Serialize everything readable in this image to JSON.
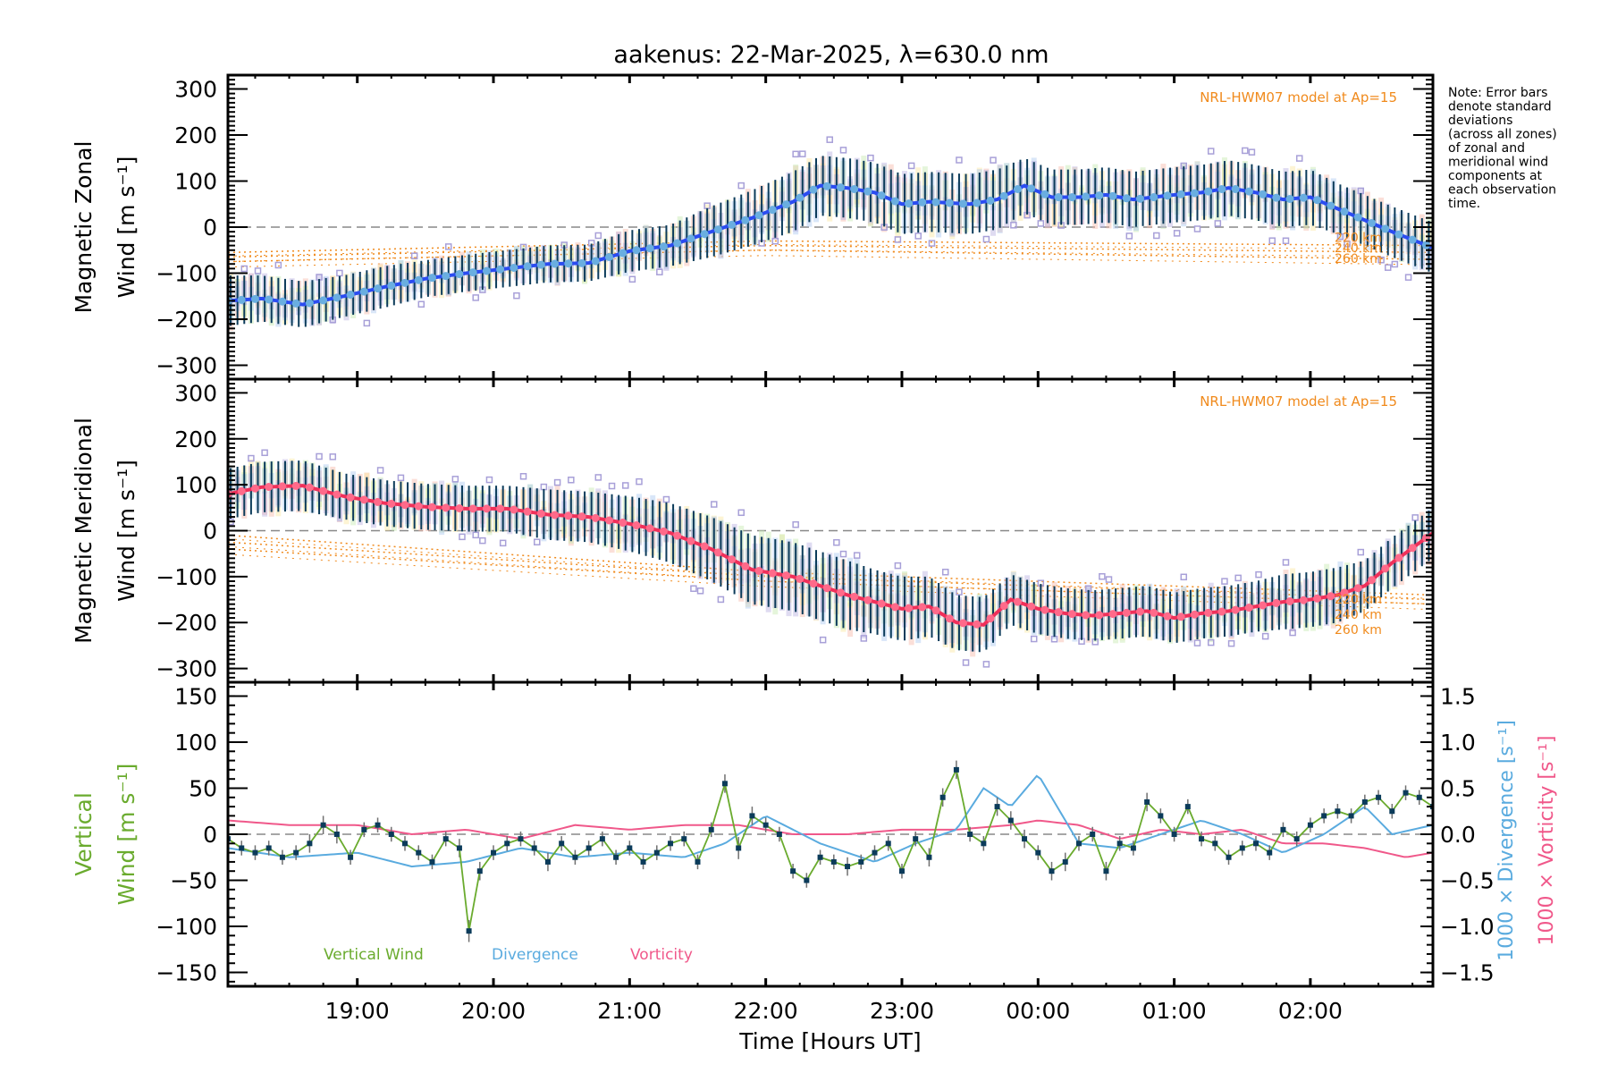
{
  "title": "aakenus: 22-Mar-2025, λ=630.0 nm",
  "note_lines": [
    "Note: Error bars",
    "denote standard",
    "deviations",
    "(across all zones)",
    "of zonal and",
    "meridional wind",
    "components at",
    "each observation",
    "time."
  ],
  "chart_data": [
    {
      "type": "line",
      "panel": "zonal",
      "ylabel_line1": "Magnetic Zonal",
      "ylabel_line2": "Wind [m s⁻¹]",
      "ylim": [
        -330,
        330
      ],
      "yticks": [
        300,
        200,
        100,
        0,
        -100,
        -200,
        -300
      ],
      "xlim": [
        18.05,
        26.9
      ],
      "xticks": [
        19,
        20,
        21,
        22,
        23,
        24,
        25,
        26
      ],
      "xtick_labels": [
        "19:00",
        "20:00",
        "21:00",
        "22:00",
        "23:00",
        "00:00",
        "01:00",
        "02:00"
      ],
      "model_label": "NRL-HWM07 model at Ap=15",
      "model_altitude_labels": [
        "220 km",
        "240 km",
        "260 km"
      ],
      "reference_line": 0,
      "colors": {
        "mean": "#2b4cf0",
        "mean_marker": "#6aaee0",
        "errorbar": "#0b3b5a",
        "model": "#f08a1c",
        "zone_scatter": [
          "#f7b8a8",
          "#fbe7a0",
          "#c6e8b0",
          "#aac8f0",
          "#b8b0e0"
        ]
      },
      "series": [
        {
          "name": "Mean zonal wind",
          "x": [
            18.05,
            18.3,
            18.6,
            18.9,
            19.2,
            19.5,
            19.8,
            20.1,
            20.4,
            20.7,
            21.0,
            21.3,
            21.6,
            21.9,
            22.2,
            22.4,
            22.6,
            22.8,
            23.0,
            23.2,
            23.5,
            23.7,
            23.9,
            24.1,
            24.3,
            24.5,
            24.7,
            25.0,
            25.2,
            25.4,
            25.6,
            25.8,
            26.0,
            26.2,
            26.4,
            26.6,
            26.9
          ],
          "y": [
            -160,
            -155,
            -168,
            -150,
            -130,
            -112,
            -100,
            -90,
            -80,
            -78,
            -52,
            -40,
            -10,
            20,
            55,
            90,
            85,
            75,
            50,
            55,
            50,
            60,
            90,
            65,
            65,
            70,
            60,
            70,
            75,
            85,
            75,
            60,
            65,
            40,
            15,
            -10,
            -45
          ],
          "std": [
            55,
            50,
            50,
            45,
            45,
            40,
            40,
            40,
            40,
            40,
            45,
            45,
            55,
            60,
            65,
            65,
            65,
            65,
            65,
            65,
            65,
            65,
            60,
            60,
            60,
            60,
            60,
            60,
            60,
            60,
            60,
            60,
            60,
            55,
            55,
            55,
            55
          ]
        },
        {
          "name": "Model 220 km",
          "x": [
            18.05,
            22,
            26.9
          ],
          "y": [
            -55,
            -30,
            -40
          ]
        },
        {
          "name": "Model 240 km",
          "x": [
            18.05,
            22,
            26.9
          ],
          "y": [
            -65,
            -40,
            -55
          ]
        },
        {
          "name": "Model 260 km",
          "x": [
            18.05,
            22,
            26.9
          ],
          "y": [
            -75,
            -50,
            -70
          ]
        }
      ]
    },
    {
      "type": "line",
      "panel": "meridional",
      "ylabel_line1": "Magnetic Meridional",
      "ylabel_line2": "Wind [m s⁻¹]",
      "ylim": [
        -330,
        330
      ],
      "yticks": [
        300,
        200,
        100,
        0,
        -100,
        -200,
        -300
      ],
      "xlim": [
        18.05,
        26.9
      ],
      "model_label": "NRL-HWM07 model at Ap=15",
      "model_altitude_labels": [
        "220 km",
        "240 km",
        "260 km"
      ],
      "reference_line": 0,
      "colors": {
        "mean": "#f0305a",
        "mean_marker": "#ff6a8a",
        "errorbar": "#0b3b5a",
        "model": "#f08a1c"
      },
      "series": [
        {
          "name": "Mean meridional wind",
          "x": [
            18.05,
            18.3,
            18.6,
            18.9,
            19.2,
            19.5,
            19.8,
            20.1,
            20.4,
            20.7,
            21.0,
            21.3,
            21.6,
            21.9,
            22.2,
            22.4,
            22.6,
            22.8,
            23.0,
            23.2,
            23.4,
            23.6,
            23.8,
            24.0,
            24.2,
            24.4,
            24.6,
            24.8,
            25.0,
            25.2,
            25.4,
            25.6,
            25.8,
            26.0,
            26.2,
            26.4,
            26.6,
            26.9
          ],
          "y": [
            80,
            95,
            98,
            75,
            60,
            52,
            48,
            48,
            35,
            30,
            15,
            -5,
            -40,
            -85,
            -100,
            -120,
            -140,
            -155,
            -170,
            -165,
            -200,
            -205,
            -150,
            -170,
            -180,
            -185,
            -180,
            -175,
            -190,
            -180,
            -175,
            -165,
            -155,
            -150,
            -140,
            -120,
            -70,
            -5
          ],
          "std": [
            55,
            55,
            55,
            50,
            50,
            50,
            50,
            50,
            55,
            55,
            60,
            65,
            70,
            75,
            75,
            75,
            75,
            70,
            70,
            65,
            60,
            60,
            55,
            55,
            55,
            55,
            55,
            55,
            55,
            55,
            55,
            55,
            60,
            60,
            60,
            55,
            55,
            55
          ]
        },
        {
          "name": "Model 220 km",
          "x": [
            18.05,
            22,
            26.9
          ],
          "y": [
            -10,
            -90,
            -140
          ]
        },
        {
          "name": "Model 240 km",
          "x": [
            18.05,
            22,
            26.9
          ],
          "y": [
            -25,
            -100,
            -150
          ]
        },
        {
          "name": "Model 260 km",
          "x": [
            18.05,
            22,
            26.9
          ],
          "y": [
            -40,
            -110,
            -160
          ]
        }
      ]
    },
    {
      "type": "line",
      "panel": "vertical",
      "ylabel_line1": "Vertical",
      "ylabel_line2": "Wind [m s⁻¹]",
      "ylim": [
        -165,
        165
      ],
      "yticks": [
        150,
        100,
        50,
        0,
        -50,
        -100,
        -150
      ],
      "y2lim": [
        -1.65,
        1.65
      ],
      "y2ticks": [
        "1.5",
        "1.0",
        "0.5",
        "0.0",
        "−0.5",
        "−1.0",
        "−1.5"
      ],
      "y2label_divergence": "1000 × Divergence [s⁻¹]",
      "y2label_vorticity": "1000 × Vorticity [s⁻¹]",
      "xlabel": "Time [Hours UT]",
      "xlim": [
        18.05,
        26.9
      ],
      "legend": [
        "Vertical Wind",
        "Divergence",
        "Vorticity"
      ],
      "legend_position": "bottom-left",
      "reference_line": 0,
      "colors": {
        "vertical": "#6aab2e",
        "divergence": "#5aabdf",
        "vorticity": "#f0588a",
        "marker": "#0b3b5a",
        "errorbar": "#707070"
      },
      "series": [
        {
          "name": "Vertical Wind",
          "x": [
            18.05,
            18.15,
            18.25,
            18.35,
            18.45,
            18.55,
            18.65,
            18.75,
            18.85,
            18.95,
            19.05,
            19.15,
            19.25,
            19.35,
            19.45,
            19.55,
            19.65,
            19.75,
            19.82,
            19.9,
            20.0,
            20.1,
            20.2,
            20.3,
            20.4,
            20.5,
            20.6,
            20.7,
            20.8,
            20.9,
            21.0,
            21.1,
            21.2,
            21.3,
            21.4,
            21.5,
            21.6,
            21.7,
            21.8,
            21.9,
            22.0,
            22.1,
            22.2,
            22.3,
            22.4,
            22.5,
            22.6,
            22.7,
            22.8,
            22.9,
            23.0,
            23.1,
            23.2,
            23.3,
            23.4,
            23.5,
            23.6,
            23.7,
            23.8,
            23.9,
            24.0,
            24.1,
            24.2,
            24.3,
            24.4,
            24.5,
            24.6,
            24.7,
            24.8,
            24.9,
            25.0,
            25.1,
            25.2,
            25.3,
            25.4,
            25.5,
            25.6,
            25.7,
            25.8,
            25.9,
            26.0,
            26.1,
            26.2,
            26.3,
            26.4,
            26.5,
            26.6,
            26.7,
            26.8,
            26.9
          ],
          "y": [
            -5,
            -15,
            -20,
            -15,
            -25,
            -20,
            -10,
            10,
            0,
            -25,
            5,
            10,
            0,
            -10,
            -20,
            -30,
            -5,
            -15,
            -105,
            -40,
            -20,
            -10,
            -5,
            -15,
            -30,
            -10,
            -25,
            -15,
            -5,
            -25,
            -15,
            -30,
            -20,
            -10,
            -5,
            -30,
            5,
            55,
            -15,
            20,
            10,
            0,
            -40,
            -50,
            -25,
            -30,
            -35,
            -30,
            -20,
            -10,
            -40,
            -5,
            -25,
            40,
            70,
            0,
            -10,
            30,
            15,
            -5,
            -20,
            -40,
            -30,
            -10,
            0,
            -40,
            -10,
            -15,
            35,
            20,
            0,
            30,
            -5,
            -10,
            -25,
            -15,
            -10,
            -20,
            5,
            -5,
            10,
            20,
            25,
            20,
            35,
            40,
            25,
            45,
            40,
            30
          ],
          "std": [
            8,
            8,
            8,
            8,
            8,
            8,
            10,
            10,
            10,
            8,
            8,
            8,
            8,
            8,
            8,
            8,
            8,
            10,
            12,
            10,
            8,
            8,
            8,
            8,
            10,
            8,
            8,
            8,
            8,
            8,
            8,
            8,
            8,
            8,
            8,
            8,
            8,
            10,
            12,
            10,
            8,
            8,
            8,
            8,
            8,
            8,
            10,
            8,
            8,
            8,
            8,
            8,
            10,
            10,
            10,
            8,
            8,
            10,
            10,
            10,
            8,
            10,
            10,
            8,
            8,
            10,
            8,
            8,
            10,
            8,
            8,
            8,
            8,
            8,
            8,
            8,
            8,
            8,
            8,
            8,
            8,
            8,
            8,
            8,
            8,
            8,
            8,
            8,
            8,
            8
          ]
        },
        {
          "name": "Divergence",
          "x": [
            18.05,
            18.5,
            19.0,
            19.4,
            19.8,
            20.2,
            20.6,
            21.0,
            21.4,
            21.7,
            22.0,
            22.4,
            22.8,
            23.1,
            23.4,
            23.6,
            23.8,
            24.0,
            24.3,
            24.6,
            24.9,
            25.2,
            25.5,
            25.8,
            26.1,
            26.4,
            26.6,
            26.9
          ],
          "y": [
            -0.15,
            -0.25,
            -0.2,
            -0.35,
            -0.3,
            -0.15,
            -0.25,
            -0.2,
            -0.25,
            -0.1,
            0.2,
            -0.1,
            -0.3,
            -0.1,
            0.05,
            0.5,
            0.3,
            0.65,
            -0.1,
            -0.15,
            0.0,
            0.15,
            0.0,
            -0.2,
            0.0,
            0.3,
            0.0,
            0.1
          ]
        },
        {
          "name": "Vorticity",
          "x": [
            18.05,
            18.5,
            19.0,
            19.4,
            19.8,
            20.2,
            20.6,
            21.0,
            21.4,
            21.8,
            22.2,
            22.6,
            23.0,
            23.4,
            23.8,
            24.0,
            24.3,
            24.6,
            24.9,
            25.2,
            25.5,
            25.8,
            26.1,
            26.4,
            26.7,
            26.9
          ],
          "y": [
            0.15,
            0.1,
            0.1,
            0.0,
            0.05,
            -0.05,
            0.1,
            0.05,
            0.1,
            0.1,
            0.0,
            0.0,
            0.05,
            0.05,
            0.1,
            0.15,
            0.1,
            -0.05,
            0.05,
            0.0,
            0.05,
            -0.1,
            -0.1,
            -0.15,
            -0.25,
            -0.2
          ]
        }
      ]
    }
  ]
}
